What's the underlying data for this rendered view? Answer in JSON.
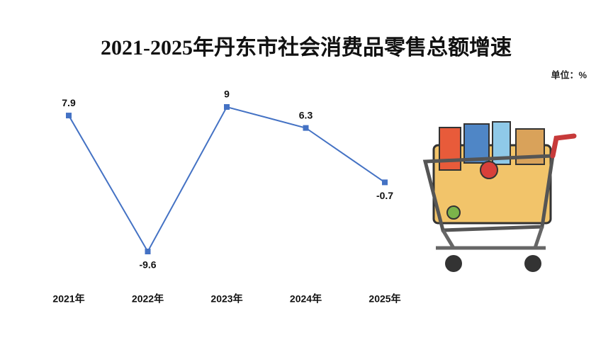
{
  "chart_data": {
    "type": "line",
    "title": "2021-2025年丹东市社会消费品零售总额增速",
    "unit": "单位：%",
    "categories": [
      "2021年",
      "2022年",
      "2023年",
      "2024年",
      "2025年"
    ],
    "series": [
      {
        "name": "增速",
        "color": "#4472c4",
        "values": [
          7.9,
          -9.6,
          9.0,
          6.3,
          -0.7
        ]
      }
    ]
  }
}
